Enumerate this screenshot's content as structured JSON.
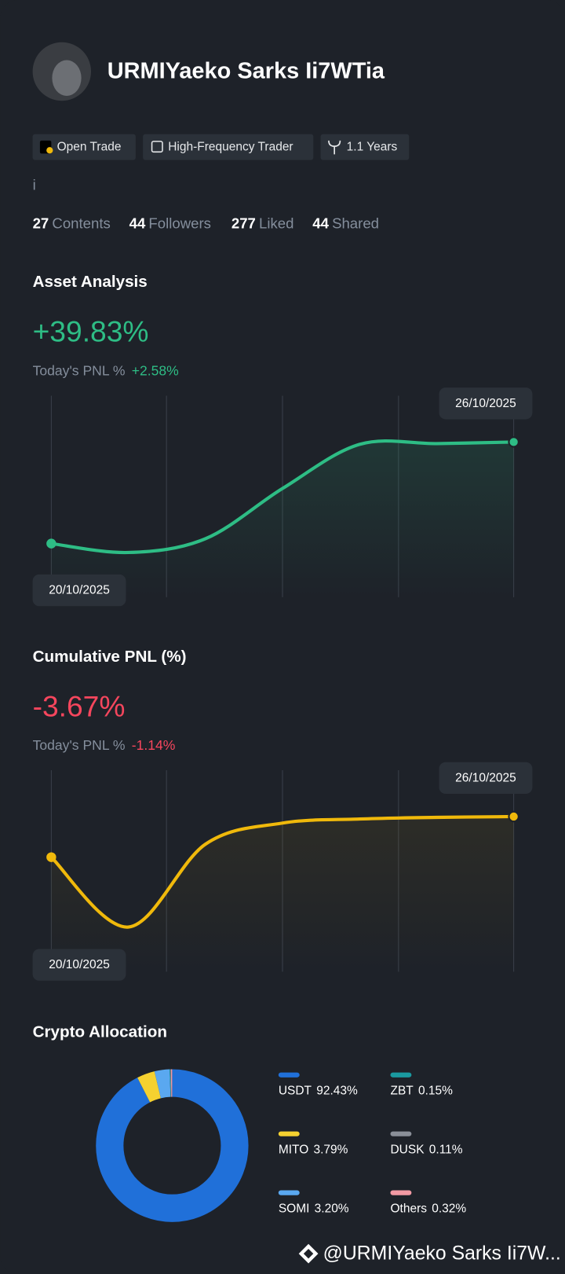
{
  "profile": {
    "name": "URMIYaeko Sarks Ii7WTia",
    "tags": [
      "Open Trade",
      "High-Frequency Trader",
      "1.1 Years"
    ],
    "bio": "i",
    "stats": [
      {
        "value": 27,
        "label": "Contents"
      },
      {
        "value": 44,
        "label": "Followers"
      },
      {
        "value": 277,
        "label": "Liked"
      },
      {
        "value": 44,
        "label": "Shared"
      }
    ]
  },
  "asset_analysis": {
    "title": "Asset Analysis",
    "headline": "+39.83%",
    "today_label": "Today's PNL %",
    "today_value": "+2.58%",
    "chart": {
      "type": "line",
      "color": "#2ebd85",
      "values": [
        0,
        -3.5,
        1.9,
        21.6,
        38.9,
        39.2,
        39.83
      ],
      "start_date": "20/10/2025",
      "end_date": "26/10/2025"
    }
  },
  "cumulative_pnl": {
    "title": "Cumulative PNL (%)",
    "headline": "-3.67%",
    "today_label": "Today's PNL %",
    "today_value": "-1.14%",
    "chart": {
      "type": "line",
      "color": "#f0b90b",
      "values": [
        -18.67,
        -44.47,
        -13.87,
        -6.07,
        -4.57,
        -3.97,
        -3.67
      ],
      "start_date": "20/10/2025",
      "end_date": "26/10/2025"
    }
  },
  "crypto_allocation": {
    "title": "Crypto Allocation",
    "chart": {
      "type": "donut",
      "categories": [
        "USDT",
        "MITO",
        "SOMI",
        "ZBT",
        "DUSK",
        "Others"
      ],
      "values": [
        92.43,
        3.79,
        3.2,
        0.15,
        0.11,
        0.32
      ],
      "value_labels": [
        "92.43%",
        "3.79%",
        "3.20%",
        "0.15%",
        "0.11%",
        "0.32%"
      ],
      "colors": [
        "#2070d9",
        "#f5d130",
        "#5aa8f0",
        "#1a9aa0",
        "#8a8f98",
        "#f29aa4"
      ]
    }
  },
  "watermark": "@URMIYaeko Sarks Ii7W..."
}
